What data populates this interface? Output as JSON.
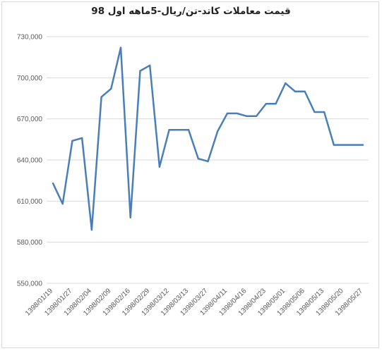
{
  "chart_data": {
    "type": "line",
    "title": "قیمت معاملات کاتد-تن/ریال-5ماهه اول 98",
    "xlabel": "",
    "ylabel": "",
    "ylim": [
      550000,
      730000
    ],
    "y_ticks": [
      "550,000",
      "580,000",
      "610,000",
      "640,000",
      "670,000",
      "700,000",
      "730,000"
    ],
    "x_ticks": [
      "1398/01/19",
      "1398/01/27",
      "1398/02/04",
      "1398/02/09",
      "1398/02/16",
      "1398/02/29",
      "1398/03/12",
      "1398/03/13",
      "1398/03/27",
      "1398/04/11",
      "1398/04/16",
      "1398/04/23",
      "1398/05/01",
      "1398/05/06",
      "1398/05/13",
      "1398/05/20",
      "1398/05/27"
    ],
    "grid": true,
    "legend": "none",
    "series_color": "#4a7ebb",
    "series": [
      {
        "values": [
          623000,
          608000,
          654000,
          656000,
          589000,
          686000,
          692000,
          722000,
          598000,
          705000,
          709000,
          635000,
          662000,
          662000,
          662000,
          641000,
          639000,
          661000,
          674000,
          674000,
          672000,
          672000,
          681000,
          681000,
          696000,
          690000,
          690000,
          675000,
          675000,
          651000,
          651000,
          651000,
          651000
        ]
      }
    ]
  }
}
